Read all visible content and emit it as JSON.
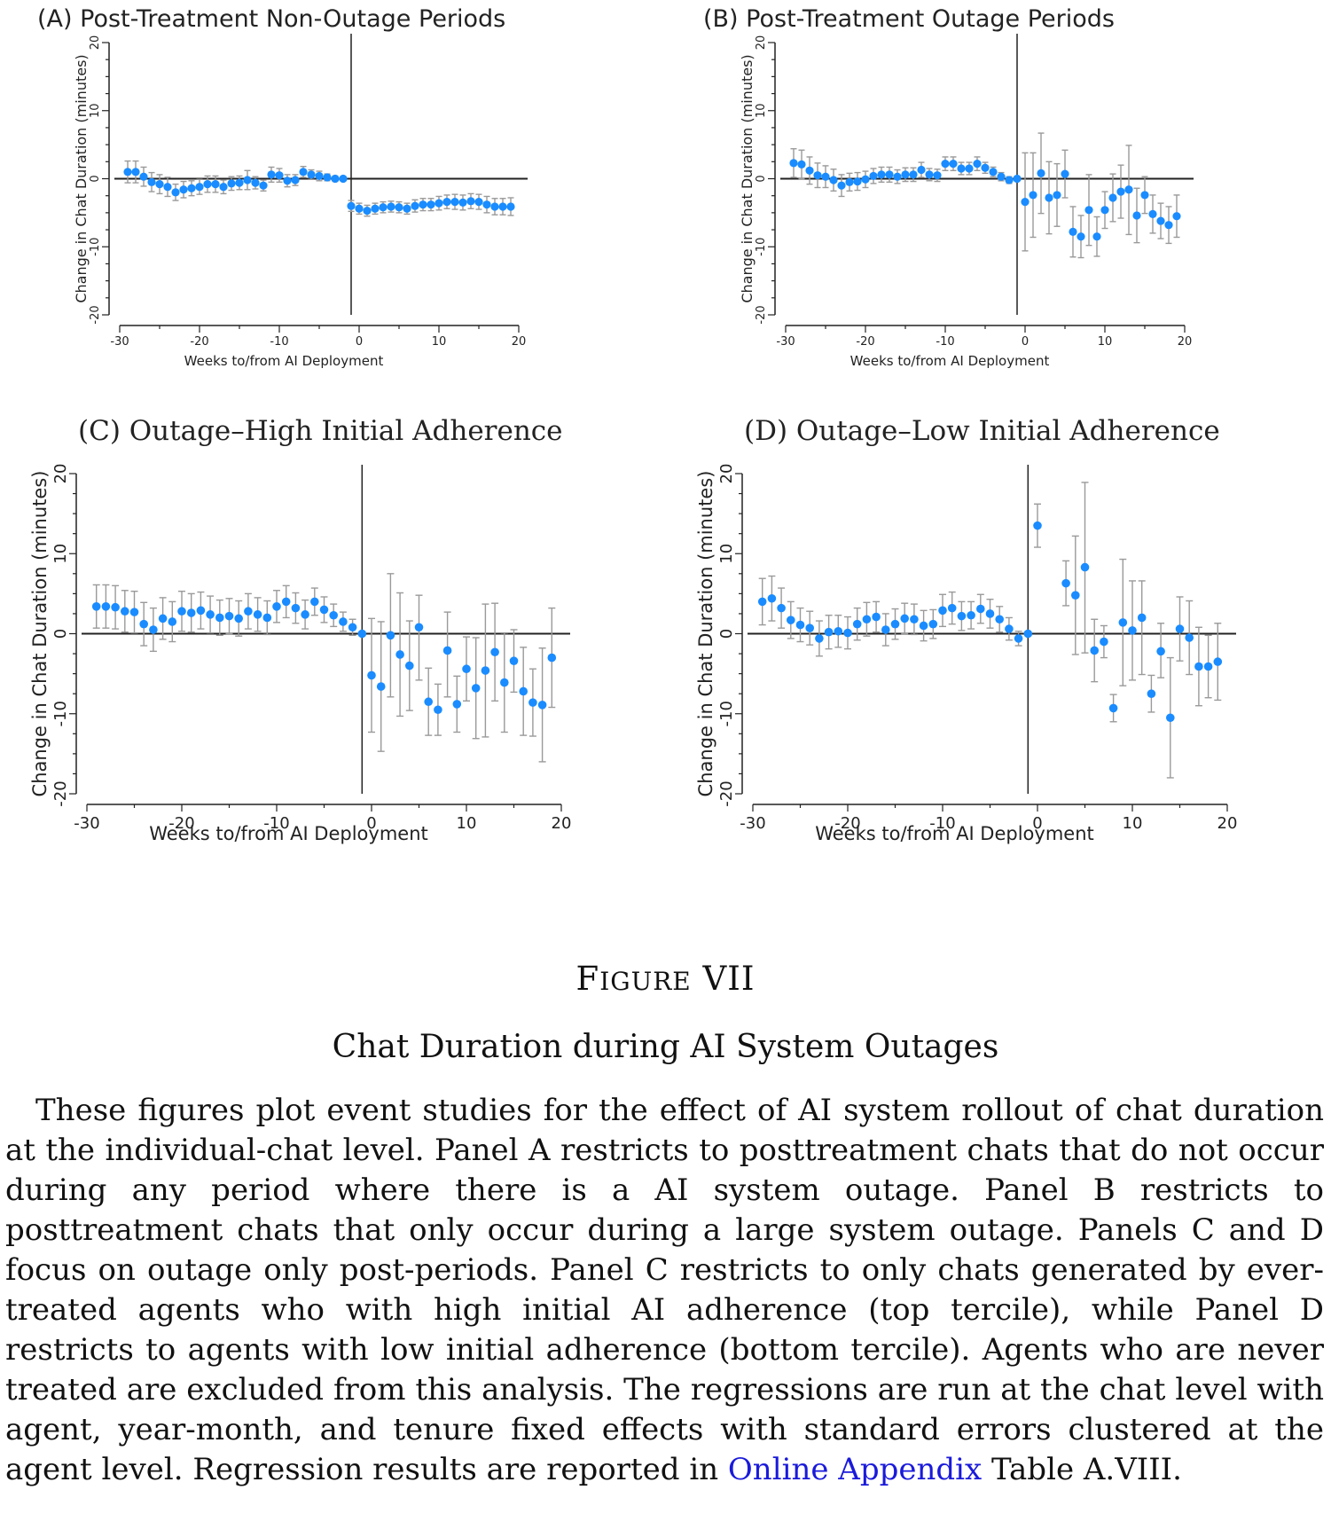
{
  "chart_data": [
    {
      "type": "scatter",
      "title": "(A) Post-Treatment Non-Outage Periods",
      "xlabel": "Weeks to/from AI Deployment",
      "ylabel": "Change in Chat Duration (minutes)",
      "xlim": [
        -30,
        20
      ],
      "ylim": [
        -20,
        20
      ],
      "xticks": [
        "-30",
        "-20",
        "-10",
        "0",
        "10",
        "20"
      ],
      "yticks": [
        "-20",
        "-10",
        "0",
        "10",
        "20"
      ],
      "series": [
        {
          "x": [
            -29,
            -28,
            -27,
            -26,
            -25,
            -24,
            -23,
            -22,
            -21,
            -20,
            -19,
            -18,
            -17,
            -16,
            -15,
            -14,
            -13,
            -12,
            -11,
            -10,
            -9,
            -8,
            -7,
            -6,
            -5,
            -4,
            -3,
            -2,
            -1,
            0,
            1,
            2,
            3,
            4,
            5,
            6,
            7,
            8,
            9,
            10,
            11,
            12,
            13,
            14,
            15,
            16,
            17,
            18,
            19
          ],
          "y": [
            1,
            1,
            0.3,
            -0.5,
            -0.8,
            -1.2,
            -2,
            -1.6,
            -1.4,
            -1.2,
            -0.8,
            -0.8,
            -1.2,
            -0.7,
            -0.6,
            -0.2,
            -0.6,
            -1,
            0.6,
            0.5,
            -0.3,
            -0.2,
            1,
            0.6,
            0.4,
            0.2,
            0,
            0,
            -4,
            -4.4,
            -4.7,
            -4.4,
            -4.2,
            -4.1,
            -4.2,
            -4.4,
            -4,
            -3.8,
            -3.8,
            -3.6,
            -3.4,
            -3.4,
            -3.5,
            -3.3,
            -3.4,
            -3.8,
            -4.1,
            -4.1,
            -4.1
          ],
          "lo": [
            -0.6,
            -0.6,
            -1.1,
            -1.9,
            -2.2,
            -2.6,
            -3.2,
            -2.8,
            -2.5,
            -2.3,
            -2,
            -2,
            -2.2,
            -1.7,
            -1.6,
            -1.6,
            -1.5,
            -1.8,
            -0.5,
            -0.5,
            -1.2,
            -1,
            0.2,
            -0.1,
            -0.3,
            -0.3,
            -0.4,
            0,
            -4.8,
            -5.2,
            -5.5,
            -5.2,
            -5,
            -4.9,
            -5,
            -5.2,
            -4.9,
            -4.7,
            -4.7,
            -4.6,
            -4.4,
            -4.5,
            -4.6,
            -4.4,
            -4.5,
            -5,
            -5.3,
            -5.3,
            -5.4
          ],
          "hi": [
            2.6,
            2.6,
            1.7,
            0.9,
            0.6,
            0.2,
            -0.8,
            -0.4,
            -0.3,
            -0.1,
            0.4,
            0.4,
            -0.2,
            0.3,
            0.4,
            1.2,
            0.3,
            -0.2,
            1.7,
            1.5,
            0.6,
            0.6,
            1.8,
            1.3,
            1.1,
            0.7,
            0.4,
            0,
            -3.2,
            -3.6,
            -3.9,
            -3.6,
            -3.4,
            -3.3,
            -3.4,
            -3.6,
            -3.1,
            -2.9,
            -2.9,
            -2.6,
            -2.4,
            -2.3,
            -2.4,
            -2.2,
            -2.3,
            -2.6,
            -2.9,
            -2.9,
            -2.8
          ]
        }
      ]
    },
    {
      "type": "scatter",
      "title": "(B) Post-Treatment Outage Periods",
      "xlabel": "Weeks to/from AI Deployment",
      "ylabel": "Change in Chat Duration (minutes)",
      "xlim": [
        -30,
        20
      ],
      "ylim": [
        -20,
        20
      ],
      "xticks": [
        "-30",
        "-20",
        "-10",
        "0",
        "10",
        "20"
      ],
      "yticks": [
        "-20",
        "-10",
        "0",
        "10",
        "20"
      ],
      "series": [
        {
          "x": [
            -29,
            -28,
            -27,
            -26,
            -25,
            -24,
            -23,
            -22,
            -21,
            -20,
            -19,
            -18,
            -17,
            -16,
            -15,
            -14,
            -13,
            -12,
            -11,
            -10,
            -9,
            -8,
            -7,
            -6,
            -5,
            -4,
            -3,
            -2,
            -1,
            0,
            1,
            2,
            3,
            4,
            5,
            6,
            7,
            8,
            9,
            10,
            11,
            12,
            13,
            14,
            15,
            16,
            17,
            18,
            19
          ],
          "y": [
            2.3,
            2.1,
            1.2,
            0.5,
            0.3,
            -0.2,
            -1,
            -0.5,
            -0.4,
            -0.1,
            0.4,
            0.6,
            0.6,
            0.3,
            0.6,
            0.6,
            1.3,
            0.6,
            0.5,
            2.2,
            2.2,
            1.5,
            1.5,
            2.2,
            1.6,
            1,
            0.3,
            -0.2,
            0,
            -3.4,
            -2.4,
            0.8,
            -2.8,
            -2.4,
            0.7,
            -7.8,
            -8.5,
            -4.6,
            -8.5,
            -4.6,
            -2.8,
            -1.9,
            -1.6,
            -5.4,
            -2.4,
            -5.2,
            -6.2,
            -6.8,
            -5.5
          ],
          "lo": [
            0.2,
            0,
            -0.8,
            -1.3,
            -1.3,
            -1.8,
            -2.6,
            -1.8,
            -1.7,
            -1.3,
            -0.7,
            -0.5,
            -0.5,
            -0.7,
            -0.4,
            -0.4,
            0.2,
            -0.3,
            -0.4,
            1.2,
            1.2,
            0.6,
            0.6,
            1.2,
            0.8,
            0.3,
            -0.3,
            -0.7,
            0,
            -10.6,
            -8.6,
            -5.1,
            -8.1,
            -7,
            -2.8,
            -11.5,
            -11.6,
            -9.8,
            -11.4,
            -7.3,
            -6.3,
            -5.8,
            -8.2,
            -9.4,
            -5.1,
            -8,
            -8.8,
            -9.5,
            -8.6
          ],
          "hi": [
            4.4,
            4.2,
            3.2,
            2.3,
            1.9,
            1.4,
            0.6,
            0.8,
            0.9,
            1.1,
            1.5,
            1.7,
            1.7,
            1.3,
            1.6,
            1.6,
            2.4,
            1.5,
            1.4,
            3.2,
            3.2,
            2.4,
            2.4,
            3.2,
            2.4,
            1.7,
            0.9,
            0.3,
            0,
            3.8,
            3.8,
            6.7,
            2.5,
            2.2,
            4.2,
            -4.1,
            -5.4,
            0.6,
            -5.6,
            -1.9,
            0.7,
            2,
            4.9,
            -1.4,
            0.3,
            -2.4,
            -3.6,
            -4.1,
            -2.4
          ]
        }
      ]
    },
    {
      "type": "scatter",
      "title": "(C) Outage–High Initial Adherence",
      "xlabel": "Weeks to/from AI Deployment",
      "ylabel": "Change in Chat Duration (minutes)",
      "xlim": [
        -30,
        20
      ],
      "ylim": [
        -20,
        20
      ],
      "xticks": [
        "-30",
        "-20",
        "-10",
        "0",
        "10",
        "20"
      ],
      "yticks": [
        "-20",
        "-10",
        "0",
        "10",
        "20"
      ],
      "series": [
        {
          "x": [
            -29,
            -28,
            -27,
            -26,
            -25,
            -24,
            -23,
            -22,
            -21,
            -20,
            -19,
            -18,
            -17,
            -16,
            -15,
            -14,
            -13,
            -12,
            -11,
            -10,
            -9,
            -8,
            -7,
            -6,
            -5,
            -4,
            -3,
            -2,
            -1,
            0,
            1,
            2,
            3,
            4,
            5,
            6,
            7,
            8,
            9,
            10,
            11,
            12,
            13,
            14,
            15,
            16,
            17,
            18,
            19
          ],
          "y": [
            3.4,
            3.4,
            3.3,
            2.8,
            2.7,
            1.2,
            0.5,
            1.9,
            1.5,
            2.8,
            2.6,
            2.9,
            2.4,
            2,
            2.2,
            1.9,
            2.8,
            2.4,
            2,
            3.4,
            4,
            3.2,
            2.4,
            4,
            3,
            2.3,
            1.5,
            0.8,
            0,
            -5.2,
            -6.6,
            -0.2,
            -2.6,
            -4,
            0.8,
            -8.5,
            -9.5,
            -2.1,
            -8.8,
            -4.4,
            -6.8,
            -4.6,
            -2.3,
            -6.1,
            -3.4,
            -7.2,
            -8.6,
            -8.9,
            -3
          ],
          "lo": [
            0.7,
            0.7,
            0.6,
            0.2,
            0.1,
            -1.5,
            -2.2,
            -0.7,
            -1,
            0.3,
            0.2,
            0.6,
            0.1,
            -0.2,
            0,
            -0.3,
            0.6,
            0.3,
            -0.1,
            1.4,
            2,
            1.3,
            0.6,
            2.3,
            1.4,
            0.9,
            0.3,
            -0.2,
            0,
            -12.3,
            -14.7,
            -7.9,
            -10.3,
            -9.6,
            -5.8,
            -12.7,
            -12.7,
            -7.9,
            -12.3,
            -8.4,
            -13.1,
            -12.9,
            -8.4,
            -12.3,
            -7.3,
            -12.7,
            -12.8,
            -16,
            -9.2
          ],
          "hi": [
            6.1,
            6.1,
            6,
            5.4,
            5.3,
            3.9,
            3.2,
            4.5,
            4,
            5.3,
            5,
            5.2,
            4.7,
            4.2,
            4.4,
            4.1,
            5,
            4.5,
            4.1,
            5.4,
            6,
            5.1,
            4.2,
            5.7,
            4.6,
            3.7,
            2.7,
            1.8,
            0,
            1.9,
            1.5,
            7.5,
            5.1,
            1.6,
            4.8,
            -4.3,
            -6.3,
            2.7,
            -5.3,
            -0.4,
            -0.5,
            3.7,
            3.8,
            0.1,
            0.5,
            -1.7,
            -4.4,
            -1.8,
            3.2
          ]
        }
      ]
    },
    {
      "type": "scatter",
      "title": "(D) Outage–Low Initial Adherence",
      "xlabel": "Weeks to/from AI Deployment",
      "ylabel": "Change in Chat Duration (minutes)",
      "xlim": [
        -30,
        20
      ],
      "ylim": [
        -20,
        20
      ],
      "xticks": [
        "-30",
        "-20",
        "-10",
        "0",
        "10",
        "20"
      ],
      "yticks": [
        "-20",
        "-10",
        "0",
        "10",
        "20"
      ],
      "series": [
        {
          "x": [
            -29,
            -28,
            -27,
            -26,
            -25,
            -24,
            -23,
            -22,
            -21,
            -20,
            -19,
            -18,
            -17,
            -16,
            -15,
            -14,
            -13,
            -12,
            -11,
            -10,
            -9,
            -8,
            -7,
            -6,
            -5,
            -4,
            -3,
            -2,
            -1,
            0,
            3,
            4,
            5,
            6,
            7,
            8,
            9,
            10,
            11,
            12,
            13,
            14,
            15,
            16,
            17,
            18,
            19
          ],
          "y": [
            4,
            4.4,
            3.2,
            1.7,
            1.1,
            0.7,
            -0.6,
            0.2,
            0.3,
            0.1,
            1.2,
            1.8,
            2.1,
            0.5,
            1.2,
            1.9,
            1.8,
            1,
            1.2,
            2.9,
            3.2,
            2.2,
            2.3,
            3.1,
            2.5,
            1.8,
            0.6,
            -0.6,
            0,
            13.5,
            6.3,
            4.8,
            8.3,
            -2.1,
            -1,
            -9.3,
            1.4,
            0.4,
            2,
            -7.5,
            -2.2,
            -10.5,
            0.6,
            -0.5,
            -4.1,
            -4.1,
            -3.5
          ],
          "lo": [
            1.1,
            1.6,
            0.7,
            -0.6,
            -1,
            -1.4,
            -2.8,
            -1.9,
            -1.7,
            -1.9,
            -0.8,
            -0.3,
            0.2,
            -1.5,
            -0.7,
            0,
            -0.1,
            -0.9,
            -0.6,
            0.9,
            1.2,
            0.4,
            0.6,
            1.3,
            0.7,
            0.2,
            -0.8,
            -1.5,
            0,
            10.8,
            3.5,
            -2.6,
            -2.4,
            -6,
            -3,
            -11,
            -6.5,
            -5.8,
            -5.1,
            -9.8,
            -5.5,
            -18,
            -3.4,
            -5.1,
            -9,
            -8,
            -8.3
          ],
          "hi": [
            6.9,
            7.2,
            5.7,
            4,
            3.2,
            2.8,
            1.6,
            2.3,
            2.3,
            2.1,
            3.2,
            3.9,
            4,
            2.5,
            3.1,
            3.8,
            3.7,
            2.9,
            3,
            4.9,
            5.2,
            4,
            4,
            4.9,
            4.3,
            3.4,
            2,
            0.3,
            0,
            16.2,
            9.1,
            12.2,
            18.9,
            1.8,
            1,
            -7.6,
            9.3,
            6.6,
            6.6,
            -5.2,
            1.3,
            -3,
            4.6,
            4.1,
            0.8,
            -0.2,
            1.3
          ]
        }
      ]
    }
  ],
  "figure": {
    "label": "Figure VII",
    "label_first": "F",
    "label_smallcaps": "IGURE",
    "label_number": "VII",
    "title": "Chat Duration during AI System Outages"
  },
  "caption": {
    "text": "These figures plot event studies for the effect of AI system rollout of chat duration at the individual-chat level. Panel A restricts to posttreatment chats that do not occur during any period where there is a AI system outage. Panel B restricts to posttreatment chats that only occur during a large system outage. Panels C and D focus on outage only post-periods. Panel C restricts to only chats generated by ever-treated agents who with high initial AI adherence (top tercile), while Panel D restricts to agents with low initial adherence (bottom tercile). Agents who are never treated are excluded from this analysis. The regressions are run at the chat level with agent, year-month, and tenure fixed effects with standard errors clustered at the agent level. Regression results are reported in",
    "link_text": "Online Appendix",
    "text_after": "Table A.VIII."
  },
  "colors": {
    "point": "#1a8cff",
    "errorbar": "#9a9a9a",
    "axis": "#222222",
    "link": "#1a1adb"
  }
}
